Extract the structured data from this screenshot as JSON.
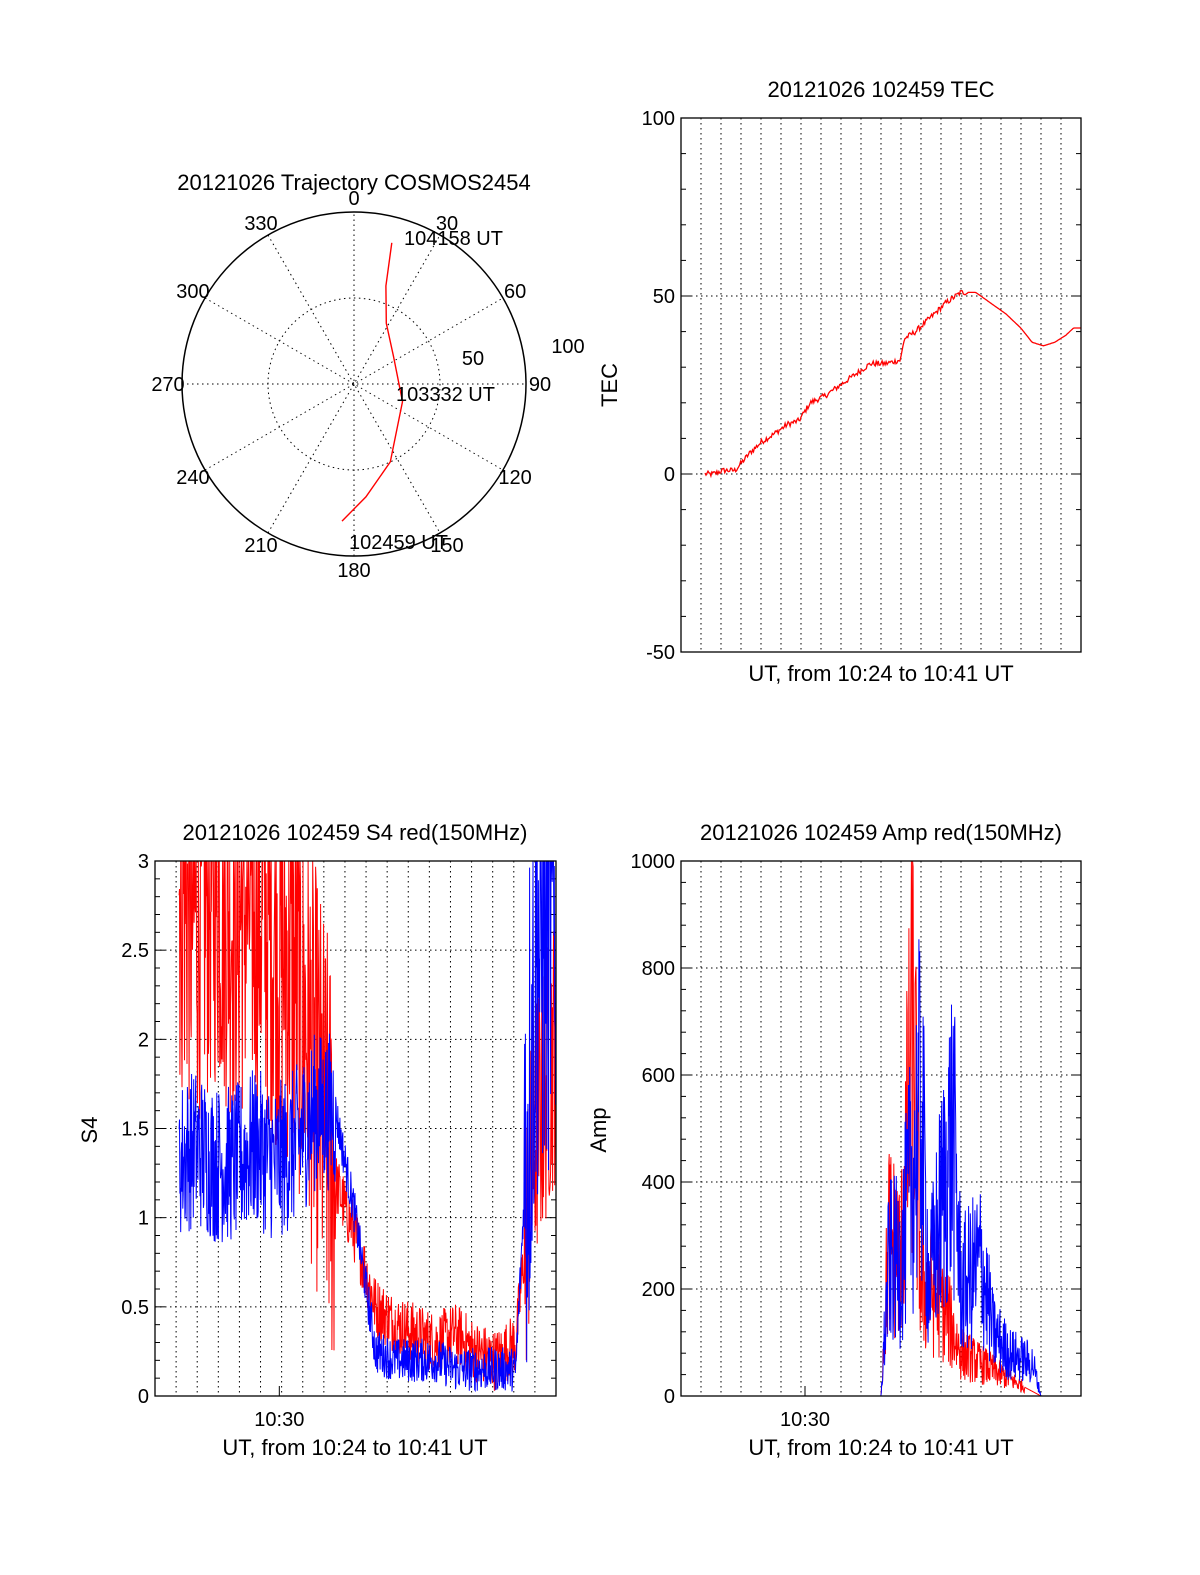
{
  "chart_data": [
    {
      "type": "polar",
      "title": "20121026 Trajectory COSMOS2454",
      "angle_labels": [
        "0",
        "30",
        "60",
        "90",
        "120",
        "150",
        "180",
        "210",
        "240",
        "270",
        "300",
        "330"
      ],
      "radial_labels": [
        "50",
        "100"
      ],
      "grid": true,
      "trajectory": {
        "color": "#ff0000",
        "points": [
          [
            185,
            80
          ],
          [
            174,
            66
          ],
          [
            155,
            50
          ],
          [
            110,
            30
          ],
          [
            55,
            28
          ],
          [
            28,
            40
          ],
          [
            18,
            60
          ],
          [
            15,
            85
          ]
        ],
        "annotations": [
          {
            "text": "104158 UT"
          },
          {
            "text": "103332 UT"
          },
          {
            "text": "102459 UT"
          }
        ]
      }
    },
    {
      "type": "line",
      "title": "20121026 102459 TEC",
      "xlabel": "UT, from 10:24 to 10:41 UT",
      "ylabel": "TEC",
      "ylim": [
        -50,
        100
      ],
      "yticks": [
        "-50",
        "0",
        "50",
        "100"
      ],
      "grid": true,
      "series": [
        {
          "color": "#ff0000",
          "x": [
            0,
            0.02,
            0.05,
            0.08,
            0.12,
            0.15,
            0.18,
            0.22,
            0.25,
            0.28,
            0.32,
            0.36,
            0.4,
            0.44,
            0.48,
            0.52,
            0.53,
            0.56,
            0.58,
            0.6,
            0.64,
            0.68,
            0.72,
            0.76,
            0.8,
            0.84,
            0.87,
            0.9,
            0.93,
            0.96,
            0.98,
            1.0
          ],
          "values": [
            0,
            0,
            1,
            1,
            6,
            9,
            11,
            14,
            15,
            20,
            22,
            25,
            28,
            31,
            31,
            32,
            38,
            40,
            42,
            44,
            48,
            51,
            51,
            48,
            45,
            41,
            37,
            36,
            37,
            39,
            41,
            41
          ]
        }
      ]
    },
    {
      "type": "line",
      "title": "20121026 102459 S4 red(150MHz)",
      "xlabel": "UT, from 10:24 to 10:41 UT",
      "ylabel": "S4",
      "ylim": [
        0,
        3
      ],
      "yticks": [
        "0",
        "0.5",
        "1",
        "1.5",
        "2",
        "2.5",
        "3"
      ],
      "xticks": [
        "10:30"
      ],
      "grid": true,
      "series": [
        {
          "color": "#ff0000",
          "x": [
            0,
            0.05,
            0.1,
            0.15,
            0.2,
            0.25,
            0.3,
            0.35,
            0.4,
            0.45,
            0.5,
            0.55,
            0.6,
            0.65,
            0.7,
            0.75,
            0.8,
            0.85,
            0.9,
            0.95,
            1.0
          ],
          "values": [
            2.8,
            2.9,
            2.7,
            2.9,
            2.7,
            2.8,
            2.6,
            2.4,
            1.8,
            1.2,
            0.9,
            0.5,
            0.4,
            0.35,
            0.3,
            0.35,
            0.25,
            0.2,
            0.3,
            1.5,
            2.0
          ]
        },
        {
          "color": "#0000ff",
          "x": [
            0,
            0.05,
            0.1,
            0.15,
            0.2,
            0.25,
            0.3,
            0.35,
            0.4,
            0.45,
            0.5,
            0.55,
            0.6,
            0.65,
            0.7,
            0.75,
            0.8,
            0.85,
            0.9,
            0.95,
            1.0
          ],
          "values": [
            1.3,
            1.3,
            1.4,
            1.3,
            1.3,
            1.4,
            1.3,
            1.4,
            1.6,
            1.6,
            1.0,
            0.25,
            0.2,
            0.2,
            0.2,
            0.15,
            0.15,
            0.15,
            0.15,
            2.5,
            2.8
          ]
        }
      ]
    },
    {
      "type": "line",
      "title": "20121026 102459 Amp red(150MHz)",
      "xlabel": "UT, from 10:24 to 10:41 UT",
      "ylabel": "Amp",
      "ylim": [
        0,
        1000
      ],
      "yticks": [
        "0",
        "200",
        "400",
        "600",
        "800",
        "1000"
      ],
      "xticks": [
        "10:30"
      ],
      "grid": true,
      "series": [
        {
          "color": "#ff0000",
          "x": [
            0,
            0.45,
            0.5,
            0.52,
            0.55,
            0.58,
            0.6,
            0.62,
            0.65,
            0.7,
            0.75,
            0.8,
            0.85,
            0.9,
            1.0
          ],
          "values": [
            0,
            0,
            0,
            300,
            250,
            700,
            200,
            200,
            180,
            80,
            60,
            40,
            20,
            0,
            0
          ]
        },
        {
          "color": "#0000ff",
          "x": [
            0,
            0.45,
            0.5,
            0.52,
            0.55,
            0.6,
            0.62,
            0.65,
            0.68,
            0.7,
            0.75,
            0.78,
            0.82,
            0.88,
            0.9,
            1.0
          ],
          "values": [
            0,
            0,
            0,
            250,
            250,
            550,
            200,
            350,
            500,
            200,
            250,
            120,
            80,
            60,
            0,
            0
          ]
        }
      ]
    }
  ]
}
